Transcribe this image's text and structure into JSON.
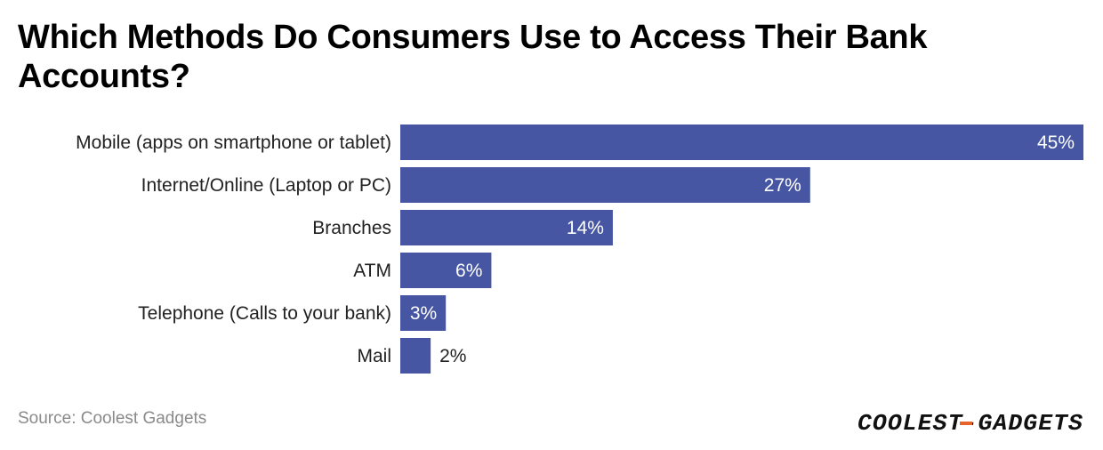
{
  "chart_data": {
    "type": "bar",
    "orientation": "horizontal",
    "title": "Which Methods Do Consumers Use to Access Their Bank Accounts?",
    "categories": [
      "Mobile (apps on smartphone or tablet)",
      "Internet/Online (Laptop or PC)",
      "Branches",
      "ATM",
      "Telephone (Calls to your bank)",
      "Mail"
    ],
    "values": [
      45,
      27,
      14,
      6,
      3,
      2
    ],
    "value_labels": [
      "45%",
      "27%",
      "14%",
      "6%",
      "3%",
      "2%"
    ],
    "xlim": [
      0,
      45
    ],
    "grid": false,
    "legend": "none",
    "bar_color": "#4656a3"
  },
  "footer": {
    "source": "Source: Coolest Gadgets",
    "logo_text": "COOLEST-GADGETS",
    "logo_accent": "#e8632a"
  }
}
